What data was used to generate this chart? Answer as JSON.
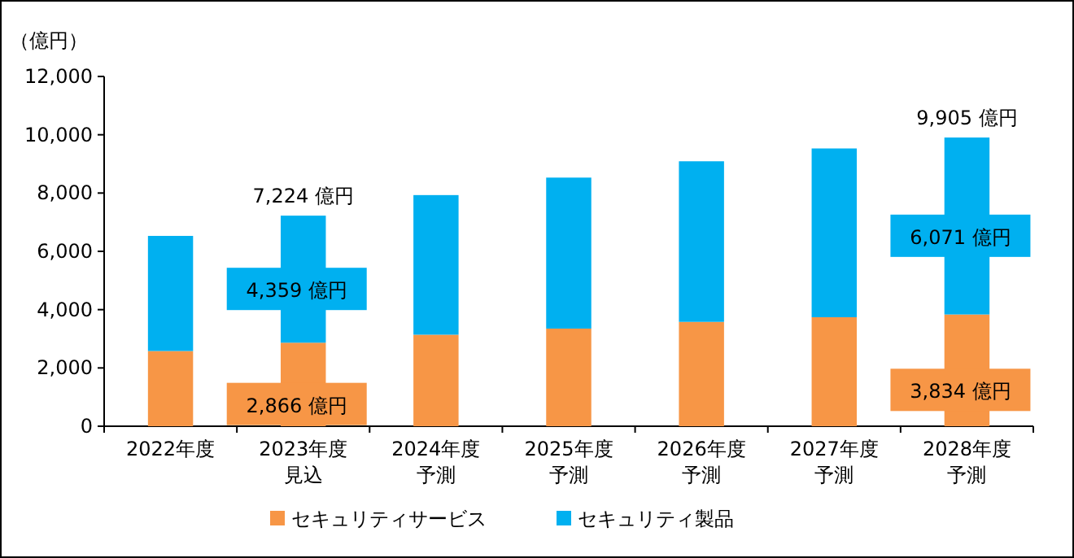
{
  "chart_data": {
    "type": "bar",
    "stacked": true,
    "ylabel": "（億円）",
    "categories": [
      "2022年度",
      "2023年度見込",
      "2024年度予測",
      "2025年度予測",
      "2026年度予測",
      "2027年度予測",
      "2028年度予測"
    ],
    "series": [
      {
        "name": "セキュリティサービス",
        "color": "#f79646",
        "values": [
          2580,
          2866,
          3140,
          3350,
          3580,
          3740,
          3834
        ],
        "value_labels": [
          null,
          "2,866 億円",
          null,
          null,
          null,
          null,
          "3,834 億円"
        ]
      },
      {
        "name": "セキュリティ製品",
        "color": "#00b0f0",
        "values": [
          3950,
          4359,
          4790,
          5180,
          5510,
          5790,
          6071
        ],
        "value_labels": [
          null,
          "4,359 億円",
          null,
          null,
          null,
          null,
          "6,071 億円"
        ]
      }
    ],
    "totals": [
      null,
      "7,224 億円",
      null,
      null,
      null,
      null,
      "9,905 億円"
    ],
    "ylim": [
      0,
      12000
    ],
    "yticks": [
      {
        "value": 0,
        "label": "0"
      },
      {
        "value": 2000,
        "label": "2,000"
      },
      {
        "value": 4000,
        "label": "4,000"
      },
      {
        "value": 6000,
        "label": "6,000"
      },
      {
        "value": 8000,
        "label": "8,000"
      },
      {
        "value": 10000,
        "label": "10,000"
      },
      {
        "value": 12000,
        "label": "12,000"
      }
    ],
    "grid": false,
    "legend": "bottom"
  }
}
